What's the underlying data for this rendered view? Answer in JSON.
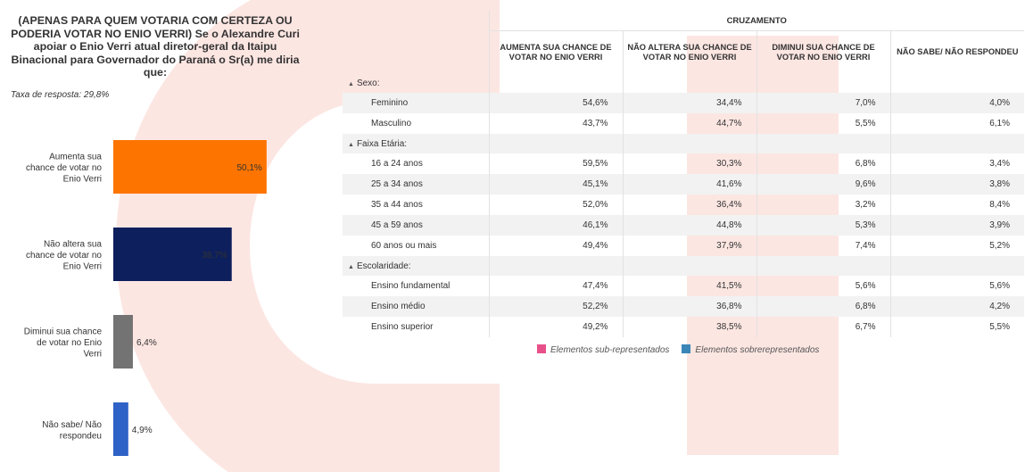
{
  "question": "(APENAS PARA QUEM VOTARIA COM CERTEZA OU PODERIA VOTAR NO ENIO VERRI) Se o Alexandre Curi apoiar o Enio Verri atual diretor-geral da Itaipu Binacional para Governador do Paraná o Sr(a) me diria que:",
  "response_rate": "Taxa de resposta: 29,8%",
  "chart_data": {
    "type": "bar",
    "orientation": "horizontal",
    "categories": [
      "Aumenta sua chance de votar no Enio Verri",
      "Não altera sua chance de votar no Enio Verri",
      "Diminui sua chance de votar no Enio Verri",
      "Não sabe/ Não respondeu"
    ],
    "category_lines": [
      [
        "Aumenta sua",
        "chance de votar no",
        "Enio Verri"
      ],
      [
        "Não altera sua",
        "chance de votar no",
        "Enio Verri"
      ],
      [
        "Diminui sua chance",
        "de votar no Enio",
        "Verri"
      ],
      [
        "Não sabe/ Não",
        "respondeu"
      ]
    ],
    "values": [
      50.1,
      38.7,
      6.4,
      4.9
    ],
    "value_labels": [
      "50,1%",
      "38,7%",
      "6,4%",
      "4,9%"
    ],
    "colors": [
      "#fd7400",
      "#0d1f5c",
      "#737373",
      "#2f62c6"
    ],
    "xlim": [
      0,
      100
    ]
  },
  "crosstab": {
    "super_header": "CRUZAMENTO",
    "columns": [
      "AUMENTA SUA CHANCE DE VOTAR NO ENIO VERRI",
      "NÃO ALTERA SUA CHANCE DE VOTAR NO ENIO VERRI",
      "DIMINUI SUA CHANCE DE VOTAR NO ENIO VERRI",
      "NÃO SABE/ NÃO RESPONDEU"
    ],
    "groups": [
      {
        "label": "Sexo:",
        "rows": [
          {
            "label": "Feminino",
            "values": [
              "54,6%",
              "34,4%",
              "7,0%",
              "4,0%"
            ]
          },
          {
            "label": "Masculino",
            "values": [
              "43,7%",
              "44,7%",
              "5,5%",
              "6,1%"
            ]
          }
        ]
      },
      {
        "label": "Faixa Etária:",
        "rows": [
          {
            "label": "16 a 24 anos",
            "values": [
              "59,5%",
              "30,3%",
              "6,8%",
              "3,4%"
            ]
          },
          {
            "label": "25 a 34 anos",
            "values": [
              "45,1%",
              "41,6%",
              "9,6%",
              "3,8%"
            ]
          },
          {
            "label": "35 a 44 anos",
            "values": [
              "52,0%",
              "36,4%",
              "3,2%",
              "8,4%"
            ]
          },
          {
            "label": "45 a 59 anos",
            "values": [
              "46,1%",
              "44,8%",
              "5,3%",
              "3,9%"
            ]
          },
          {
            "label": "60 anos ou mais",
            "values": [
              "49,4%",
              "37,9%",
              "7,4%",
              "5,2%"
            ]
          }
        ]
      },
      {
        "label": "Escolaridade:",
        "rows": [
          {
            "label": "Ensino fundamental",
            "values": [
              "47,4%",
              "41,5%",
              "5,6%",
              "5,6%"
            ]
          },
          {
            "label": "Ensino médio",
            "values": [
              "52,2%",
              "36,8%",
              "6,8%",
              "4,2%"
            ]
          },
          {
            "label": "Ensino superior",
            "values": [
              "49,2%",
              "38,5%",
              "6,7%",
              "5,5%"
            ]
          }
        ]
      }
    ]
  },
  "legend": [
    {
      "label": "Elementos sub-representados",
      "color": "#e8508a"
    },
    {
      "label": "Elementos sobrerepresentados",
      "color": "#3a86b8"
    }
  ],
  "watermark_color": "#fce6e2"
}
